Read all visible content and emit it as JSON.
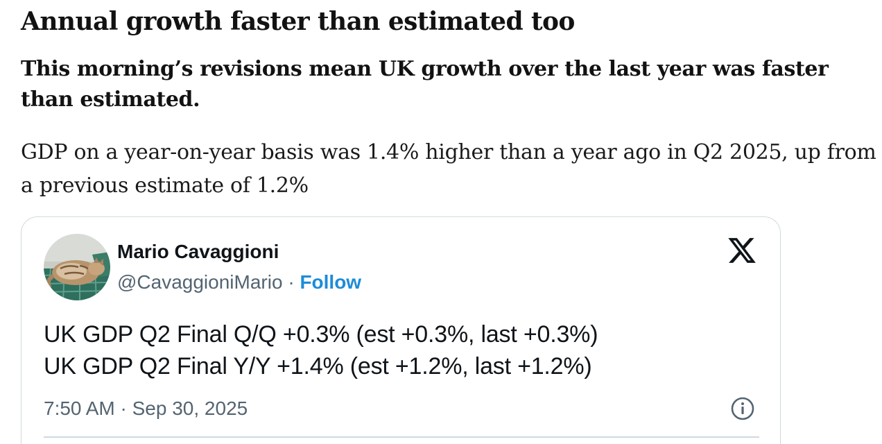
{
  "article": {
    "headline": "Annual growth faster than estimated too",
    "subheadline": "This morning’s revisions mean UK growth over the last year was faster than estimated.",
    "body": "GDP on a year-on-year basis was 1.4% higher than a year ago in Q2 2025, up from a previous estimate of 1.2%"
  },
  "tweet": {
    "author_name": "Mario Cavaggioni",
    "handle": "@CavaggioniMario",
    "separator": "·",
    "follow_label": "Follow",
    "lines": [
      "UK GDP Q2 Final Q/Q +0.3% (est +0.3%, last +0.3%)",
      "UK GDP Q2 Final Y/Y +1.4% (est +1.2%, last +1.2%)"
    ],
    "time": "7:50 AM",
    "date": "Sep 30, 2025",
    "icons": {
      "brand": "x-logo-icon",
      "info": "info-icon"
    },
    "colors": {
      "follow": "#1d8cd8",
      "secondary_text": "#536471",
      "border": "#cfd9de"
    }
  }
}
